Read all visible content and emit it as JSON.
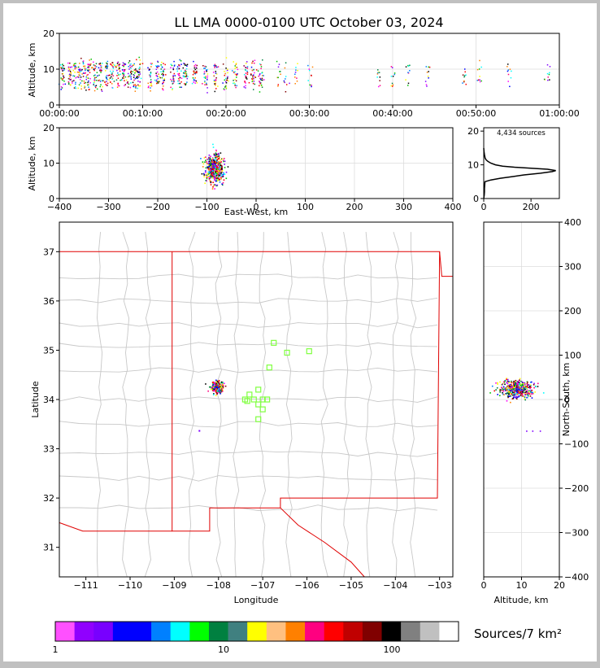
{
  "title": "LL LMA 0000-0100 UTC October 03, 2024",
  "colors": {
    "background": "#ffffff",
    "frame": "#c0c0c0",
    "state_border": "#e00000",
    "county_border": "#c8c8c8",
    "station_marker": "#80ff40",
    "grid": "#dddddd",
    "profile_line": "#000000"
  },
  "chart_data": [
    {
      "name": "altitude-time",
      "type": "scatter",
      "ylabel": "Altitude, km",
      "xlabel": "",
      "y_ticks": [
        "0",
        "10",
        "20"
      ],
      "x_ticks": [
        "00:00:00",
        "00:10:00",
        "00:20:00",
        "00:30:00",
        "00:40:00",
        "00:50:00",
        "01:00:00"
      ],
      "xlim_minutes": [
        0,
        60
      ],
      "ylim": [
        0,
        20
      ],
      "grid": true,
      "flash_times_minutes": [
        0.3,
        1.2,
        1.8,
        2.4,
        3.0,
        3.5,
        4.2,
        4.9,
        5.6,
        6.3,
        7.0,
        7.7,
        8.4,
        9.0,
        9.6,
        10.8,
        11.7,
        12.4,
        13.6,
        14.3,
        15.0,
        16.2,
        17.5,
        18.7,
        19.9,
        21.0,
        22.3,
        23.2,
        24.2,
        26.3,
        27.0,
        28.3,
        30.0,
        38.2,
        39.9,
        41.8,
        44.1,
        48.5,
        50.4,
        53.9,
        58.6
      ],
      "altitude_range_km": [
        5,
        12
      ]
    },
    {
      "name": "altitude-ew",
      "type": "scatter",
      "xlabel": "East-West, km",
      "ylabel": "Altitude, km",
      "x_ticks": [
        "−400",
        "−300",
        "−200",
        "−100",
        "0",
        "100",
        "200",
        "300",
        "400"
      ],
      "y_ticks": [
        "0",
        "10",
        "20"
      ],
      "xlim": [
        -400,
        400
      ],
      "ylim": [
        0,
        20
      ],
      "grid": true,
      "cluster": {
        "x_center_km": -85,
        "x_spread_km": 16,
        "z_center_km": 8.5,
        "z_spread_km": 3
      }
    },
    {
      "name": "altitude-histogram",
      "type": "line",
      "annotation": "4,434 sources",
      "x_ticks": [
        "0",
        "200"
      ],
      "y_ticks": [
        "0",
        "10",
        "20"
      ],
      "xlim": [
        0,
        320
      ],
      "ylim": [
        0,
        21
      ],
      "profile": [
        [
          0,
          0
        ],
        [
          2,
          1
        ],
        [
          3,
          2
        ],
        [
          3,
          3
        ],
        [
          4,
          4
        ],
        [
          5,
          5
        ],
        [
          30,
          5.5
        ],
        [
          70,
          6
        ],
        [
          120,
          6.5
        ],
        [
          170,
          7
        ],
        [
          240,
          7.5
        ],
        [
          290,
          8
        ],
        [
          305,
          8.3
        ],
        [
          270,
          8.7
        ],
        [
          200,
          9
        ],
        [
          130,
          9.3
        ],
        [
          80,
          9.6
        ],
        [
          50,
          10
        ],
        [
          30,
          10.5
        ],
        [
          18,
          11
        ],
        [
          10,
          11.5
        ],
        [
          6,
          12
        ],
        [
          3,
          13
        ],
        [
          1,
          14
        ],
        [
          0,
          15
        ]
      ]
    },
    {
      "name": "plan-view",
      "type": "scatter",
      "xlabel": "Longitude",
      "ylabel": "Latitude",
      "x_ticks": [
        "−111",
        "−110",
        "−109",
        "−108",
        "−107",
        "−106",
        "−105",
        "−104",
        "−103"
      ],
      "y_ticks": [
        "31",
        "32",
        "33",
        "34",
        "35",
        "36",
        "37"
      ],
      "xlim": [
        -111.6,
        -102.7
      ],
      "ylim": [
        30.4,
        37.6
      ],
      "stations": [
        [
          -107.4,
          34.0
        ],
        [
          -107.3,
          34.1
        ],
        [
          -107.2,
          34.0
        ],
        [
          -107.1,
          34.2
        ],
        [
          -107.0,
          34.0
        ],
        [
          -106.9,
          34.0
        ],
        [
          -107.1,
          33.9
        ],
        [
          -107.0,
          33.8
        ],
        [
          -107.1,
          33.6
        ],
        [
          -106.85,
          34.65
        ],
        [
          -106.75,
          35.15
        ],
        [
          -106.45,
          34.95
        ],
        [
          -105.95,
          34.98
        ],
        [
          -107.35,
          33.97
        ]
      ],
      "sources": {
        "lon_center": -108.05,
        "lat_center": 34.25,
        "lon_spread": 0.12,
        "lat_spread": 0.12,
        "outlier": [
          -108.45,
          33.38
        ]
      }
    },
    {
      "name": "ns-altitude",
      "type": "scatter",
      "xlabel": "Altitude, km",
      "ylabel": "North-South, km",
      "x_ticks": [
        "0",
        "10",
        "20"
      ],
      "y_ticks": [
        "−400",
        "−300",
        "−200",
        "−100",
        "0",
        "100",
        "200",
        "300",
        "400"
      ],
      "xlim": [
        0,
        20
      ],
      "ylim": [
        -400,
        400
      ],
      "grid": true,
      "cluster": {
        "z_center_km": 8.5,
        "z_spread_km": 3,
        "y_center_km": 25,
        "y_spread_km": 15
      }
    },
    {
      "name": "colorbar",
      "type": "heatmap",
      "label": "Sources/7 km²",
      "ticks": [
        "1",
        "10",
        "100"
      ],
      "bins": [
        "#ff50ff",
        "#9000ff",
        "#7800ff",
        "#0000ff",
        "#0000ff",
        "#0080ff",
        "#00ffff",
        "#00ff00",
        "#008040",
        "#408080",
        "#ffff00",
        "#ffc080",
        "#ff8000",
        "#ff0080",
        "#ff0000",
        "#c00000",
        "#800000",
        "#000000",
        "#808080",
        "#c0c0c0",
        "#ffffff"
      ]
    }
  ]
}
